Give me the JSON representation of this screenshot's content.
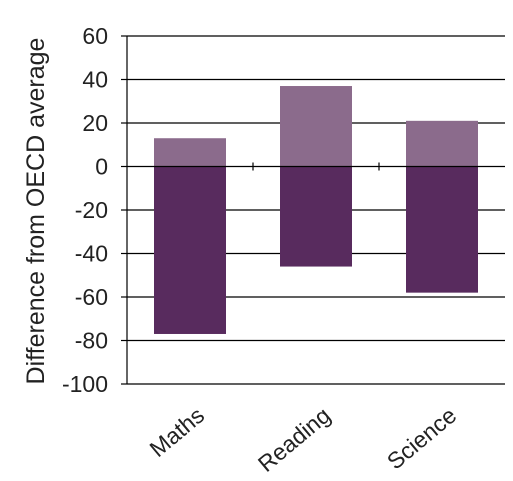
{
  "chart_data": {
    "type": "bar",
    "stacked_diverging": true,
    "ylabel": "Difference from OECD average",
    "categories": [
      "Maths",
      "Reading",
      "Science"
    ],
    "series": [
      {
        "values": [
          13,
          37,
          21
        ],
        "color": "#8B6B8C"
      },
      {
        "values": [
          -77,
          -46,
          -58
        ],
        "color": "#582B5E"
      }
    ],
    "ylim": [
      -100,
      60
    ],
    "yticks": [
      60,
      40,
      20,
      0,
      -20,
      -40,
      -60,
      -80,
      -100
    ],
    "ytick_labels": [
      "60",
      "40",
      "20",
      "0",
      "-20",
      "-40",
      "-60",
      "-80",
      "-100"
    ],
    "grid": true,
    "legend": "none"
  }
}
